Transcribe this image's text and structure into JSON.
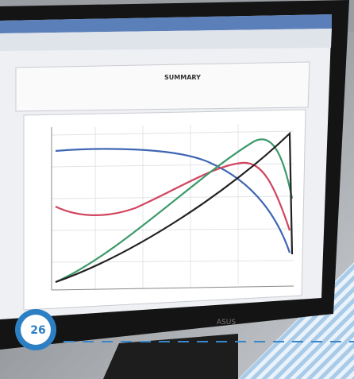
{
  "screen": {
    "title": "SUMMARY"
  },
  "badge": {
    "number": "26"
  },
  "monitor": {
    "brand": "ASUS"
  }
}
